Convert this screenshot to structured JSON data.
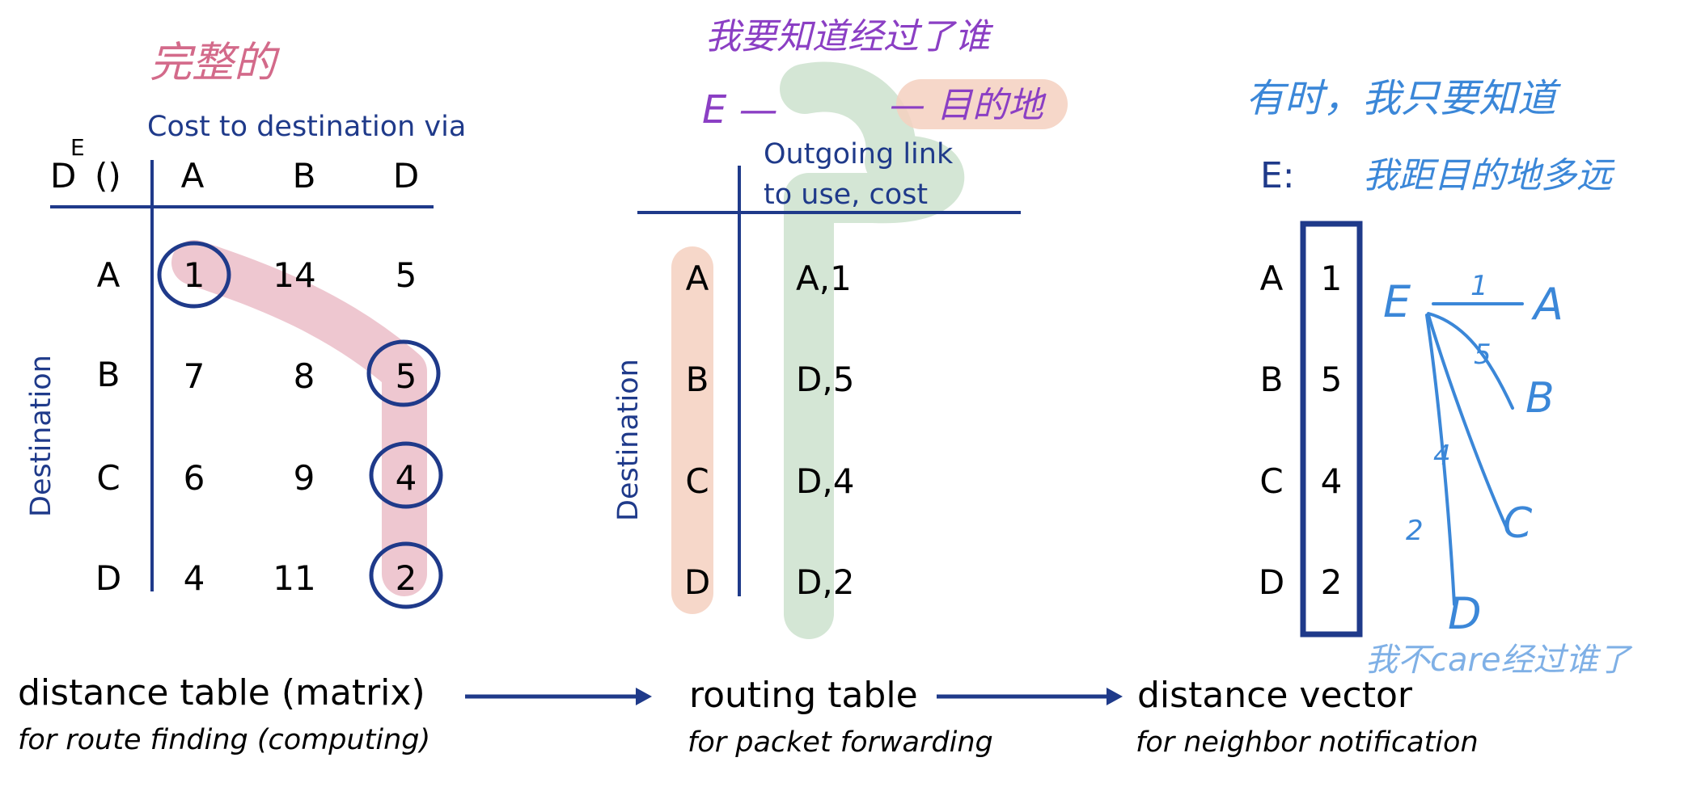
{
  "colors": {
    "navy": "#1f3a8a",
    "ink": "#000000",
    "pink_highlight": "#e8b4c0",
    "pink_note": "#d36a8a",
    "purple_note": "#8b3fc4",
    "blue_note": "#3b87d8",
    "light_blue_note": "#7fb0e6",
    "peach_highlight": "#f5d0bf",
    "green_highlight": "#cfe3d0"
  },
  "distance_table": {
    "node_label": "D",
    "node_superscript": "E",
    "node_paren": "()",
    "header": "Cost to destination via",
    "columns": [
      "A",
      "B",
      "D"
    ],
    "axis_label": "Destination",
    "rows": [
      {
        "dest": "A",
        "values": [
          "1",
          "14",
          "5"
        ]
      },
      {
        "dest": "B",
        "values": [
          "7",
          "8",
          "5"
        ]
      },
      {
        "dest": "C",
        "values": [
          "6",
          "9",
          "4"
        ]
      },
      {
        "dest": "D",
        "values": [
          "4",
          "11",
          "2"
        ]
      }
    ],
    "caption": "distance table (matrix)",
    "subcaption": "for route finding (computing)",
    "handwritten_note": "完整的"
  },
  "routing_table": {
    "header_line1": "Outgoing link",
    "header_line2": "to use, cost",
    "axis_label": "Destination",
    "rows": [
      {
        "dest": "A",
        "entry": "A,1"
      },
      {
        "dest": "B",
        "entry": "D,5"
      },
      {
        "dest": "C",
        "entry": "D,4"
      },
      {
        "dest": "D",
        "entry": "D,2"
      }
    ],
    "caption": "routing table",
    "subcaption": "for packet forwarding",
    "handwritten_note_line1": "我要知道经过了谁",
    "handwritten_note_line2_start": "E —",
    "handwritten_note_line2_end": "— 目的地"
  },
  "distance_vector": {
    "label": "E:",
    "rows": [
      {
        "dest": "A",
        "value": "1"
      },
      {
        "dest": "B",
        "value": "5"
      },
      {
        "dest": "C",
        "value": "4"
      },
      {
        "dest": "D",
        "value": "2"
      }
    ],
    "caption": "distance vector",
    "subcaption": "for neighbor notification",
    "handwritten_note_line1": "有时，我只要知道",
    "handwritten_note_line2": "我距目的地多远",
    "handwritten_footer": "我不care经过谁了",
    "sketch": {
      "source": "E",
      "targets": [
        {
          "node": "A",
          "cost": "1"
        },
        {
          "node": "B",
          "cost": "5"
        },
        {
          "node": "C",
          "cost": "4"
        },
        {
          "node": "D",
          "cost": "2"
        }
      ]
    }
  }
}
